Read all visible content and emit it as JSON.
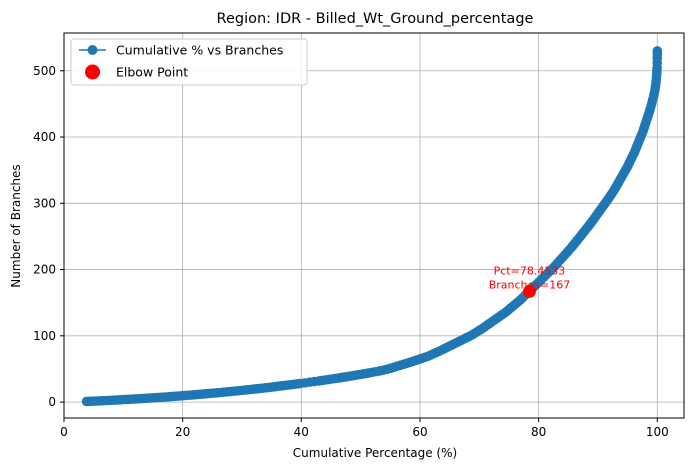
{
  "chart_data": {
    "type": "line",
    "title": "Region: IDR - Billed_Wt_Ground_percentage",
    "xlabel": "Cumulative Percentage (%)",
    "ylabel": "Number of Branches",
    "xlim": [
      0,
      104.5
    ],
    "ylim": [
      -24,
      557
    ],
    "xticks": [
      0,
      20,
      40,
      60,
      80,
      100
    ],
    "yticks": [
      0,
      100,
      200,
      300,
      400,
      500
    ],
    "grid": true,
    "legend_position": "top-left",
    "series": [
      {
        "name": "Cumulative % vs Branches",
        "color": "#1f77b4",
        "marker": "circle",
        "points": [
          [
            3.8,
            1
          ],
          [
            6.3,
            2
          ],
          [
            8.6,
            3
          ],
          [
            10.6,
            4
          ],
          [
            12.5,
            5
          ],
          [
            14.3,
            6
          ],
          [
            16.0,
            7
          ],
          [
            17.6,
            8
          ],
          [
            19.1,
            9
          ],
          [
            20.5,
            10
          ],
          [
            21.9,
            11
          ],
          [
            23.2,
            12
          ],
          [
            24.5,
            13
          ],
          [
            25.7,
            14
          ],
          [
            26.9,
            15
          ],
          [
            28.1,
            16
          ],
          [
            29.2,
            17
          ],
          [
            30.3,
            18
          ],
          [
            31.4,
            19
          ],
          [
            32.4,
            20
          ],
          [
            33.4,
            21
          ],
          [
            34.4,
            22
          ],
          [
            35.3,
            23
          ],
          [
            36.2,
            24
          ],
          [
            37.1,
            25
          ],
          [
            38.0,
            26
          ],
          [
            38.9,
            27
          ],
          [
            39.8,
            28
          ],
          [
            40.6,
            29
          ],
          [
            41.4,
            30
          ],
          [
            42.2,
            31
          ],
          [
            43.0,
            32
          ],
          [
            44.5,
            34
          ],
          [
            46.0,
            36
          ],
          [
            47.4,
            38
          ],
          [
            48.8,
            40
          ],
          [
            50.1,
            42
          ],
          [
            51.4,
            44
          ],
          [
            52.6,
            46
          ],
          [
            53.8,
            48
          ],
          [
            55.0,
            51
          ],
          [
            56.1,
            54
          ],
          [
            57.2,
            57
          ],
          [
            58.3,
            60
          ],
          [
            59.3,
            63
          ],
          [
            60.3,
            66
          ],
          [
            61.3,
            69
          ],
          [
            62.3,
            73
          ],
          [
            63.3,
            77
          ],
          [
            64.2,
            81
          ],
          [
            65.1,
            85
          ],
          [
            66.0,
            89
          ],
          [
            66.9,
            93
          ],
          [
            67.8,
            97
          ],
          [
            68.7,
            101
          ],
          [
            69.6,
            106
          ],
          [
            70.5,
            111
          ],
          [
            71.3,
            116
          ],
          [
            72.1,
            121
          ],
          [
            72.9,
            126
          ],
          [
            73.7,
            131
          ],
          [
            74.5,
            136
          ],
          [
            75.3,
            142
          ],
          [
            76.1,
            148
          ],
          [
            76.9,
            154
          ],
          [
            77.7,
            161
          ],
          [
            78.4533,
            167
          ],
          [
            79.2,
            174
          ],
          [
            80.0,
            181
          ],
          [
            80.8,
            188
          ],
          [
            81.6,
            195
          ],
          [
            82.4,
            202
          ],
          [
            83.2,
            210
          ],
          [
            84.0,
            218
          ],
          [
            84.8,
            226
          ],
          [
            85.6,
            234
          ],
          [
            86.4,
            243
          ],
          [
            87.2,
            252
          ],
          [
            88.0,
            261
          ],
          [
            88.8,
            270
          ],
          [
            89.6,
            280
          ],
          [
            90.4,
            290
          ],
          [
            91.2,
            300
          ],
          [
            92.0,
            310
          ],
          [
            92.8,
            321
          ],
          [
            93.5,
            332
          ],
          [
            94.2,
            343
          ],
          [
            94.9,
            354
          ],
          [
            95.5,
            365
          ],
          [
            96.1,
            376
          ],
          [
            96.6,
            387
          ],
          [
            97.1,
            398
          ],
          [
            97.6,
            409
          ],
          [
            98.0,
            420
          ],
          [
            98.4,
            431
          ],
          [
            98.8,
            442
          ],
          [
            99.1,
            452
          ],
          [
            99.4,
            462
          ],
          [
            99.6,
            471
          ],
          [
            99.75,
            480
          ],
          [
            99.85,
            489
          ],
          [
            99.92,
            497
          ],
          [
            99.96,
            505
          ],
          [
            99.98,
            512
          ],
          [
            99.99,
            519
          ],
          [
            100.0,
            525
          ],
          [
            100.0,
            530
          ]
        ]
      }
    ],
    "elbow_point": {
      "name": "Elbow Point",
      "color": "#ff0000",
      "x": 78.4533,
      "y": 167,
      "annotation": [
        "Pct=78.4533",
        "Branches=167"
      ]
    }
  }
}
